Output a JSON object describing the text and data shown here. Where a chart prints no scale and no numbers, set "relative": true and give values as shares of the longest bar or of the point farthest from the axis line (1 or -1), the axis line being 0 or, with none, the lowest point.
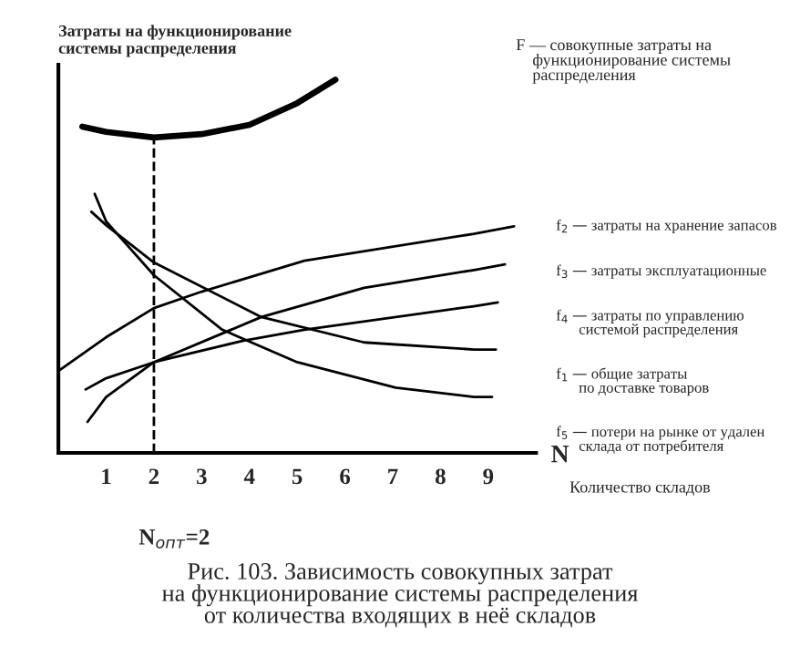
{
  "chart_data": {
    "type": "line",
    "relative": true,
    "title": "Рис. 103. Зависимость совокупных затрат\nна функционирование системы распределения\nот количества входящих в неё складов",
    "ylabel": "Затраты на функционирование\nсистемы распределения",
    "xlabel": "Количество складов",
    "xlim": [
      0,
      10
    ],
    "xticks": [
      1,
      2,
      3,
      4,
      5,
      6,
      7,
      8,
      9
    ],
    "line_style": "solid",
    "marker": "none",
    "grid": false,
    "series": [
      {
        "color": "#000000",
        "x": [
          0.5,
          1,
          2,
          3,
          4,
          5,
          5.8
        ],
        "values": [
          0.874,
          0.86,
          0.845,
          0.854,
          0.879,
          0.937,
          1
        ]
      },
      {
        "color": "#000000",
        "x": [
          0.76,
          1,
          2,
          3.43,
          5,
          7.06,
          8.7,
          9.08
        ],
        "values": [
          0.694,
          0.62,
          0.476,
          0.33,
          0.243,
          0.175,
          0.15,
          0.15
        ]
      },
      {
        "color": "#000000",
        "x": [
          0.69,
          1,
          2,
          4.25,
          6.4,
          8.7,
          9.16
        ],
        "values": [
          0.646,
          0.61,
          0.51,
          0.364,
          0.296,
          0.277,
          0.277
        ]
      },
      {
        "color": "#000000",
        "x": [
          0.04,
          1,
          2,
          3,
          5.15,
          8.7,
          9.54
        ],
        "values": [
          0.223,
          0.31,
          0.388,
          0.432,
          0.515,
          0.587,
          0.607
        ]
      },
      {
        "color": "#000000",
        "x": [
          0.61,
          1,
          2,
          4.25,
          6.4,
          8.7,
          9.35
        ],
        "values": [
          0.083,
          0.15,
          0.243,
          0.364,
          0.442,
          0.49,
          0.505
        ]
      },
      {
        "color": "#000000",
        "x": [
          0.57,
          1,
          2,
          3.85,
          5.15,
          8.7,
          9.2
        ],
        "values": [
          0.17,
          0.2,
          0.243,
          0.3,
          0.33,
          0.393,
          0.403
        ]
      }
    ],
    "ref_lines": [
      {
        "axis": "x",
        "value": 2,
        "label": "N$_{опт}$=2",
        "line_style": "dashed",
        "color": "#000000"
      }
    ],
    "annotations": [
      "N",
      "F — совокупные затраты на\n    функционирование системы\n    распределения",
      "f$_{2}$ — затраты на хранение запасов",
      "f$_{3}$ — затраты эксплуатационные",
      "f$_{4}$ — затраты по управлению\n      системой распределения",
      "f$_{1}$ — общие затраты\n      по доставке товаров",
      "f$_{5}$ — потери на рынке от удален\n      склада от потребителя"
    ]
  }
}
